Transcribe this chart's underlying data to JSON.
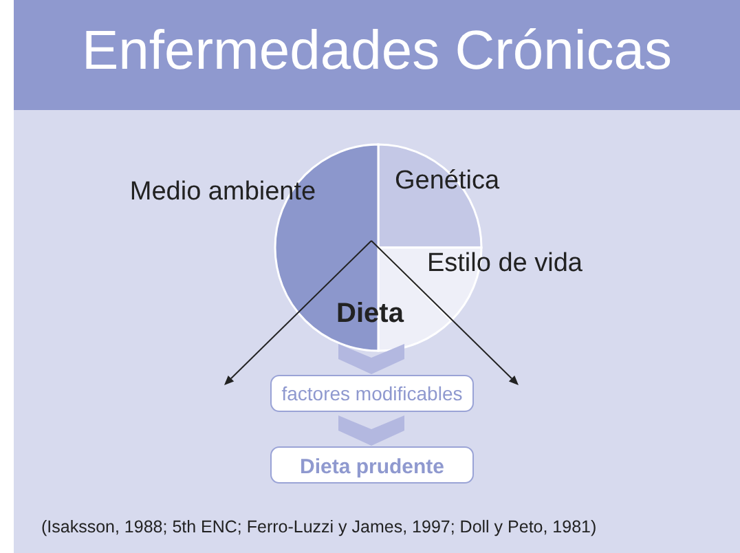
{
  "chart_data": {
    "type": "pie",
    "title": "Enfermedades Crónicas",
    "categories": [
      "Genética",
      "Estilo de vida",
      "Dieta",
      "Medio ambiente"
    ],
    "values": [
      25,
      12.5,
      12.5,
      50
    ],
    "colors": [
      "#c4c8e6",
      "#eeeff8",
      "#eeeff8",
      "#8c97cc"
    ],
    "annotations": [
      "factores modificables",
      "Dieta prudente",
      "(Isaksson, 1988; 5th ENC; Ferro-Luzzi y James, 1997; Doll y Peto, 1981)"
    ]
  }
}
